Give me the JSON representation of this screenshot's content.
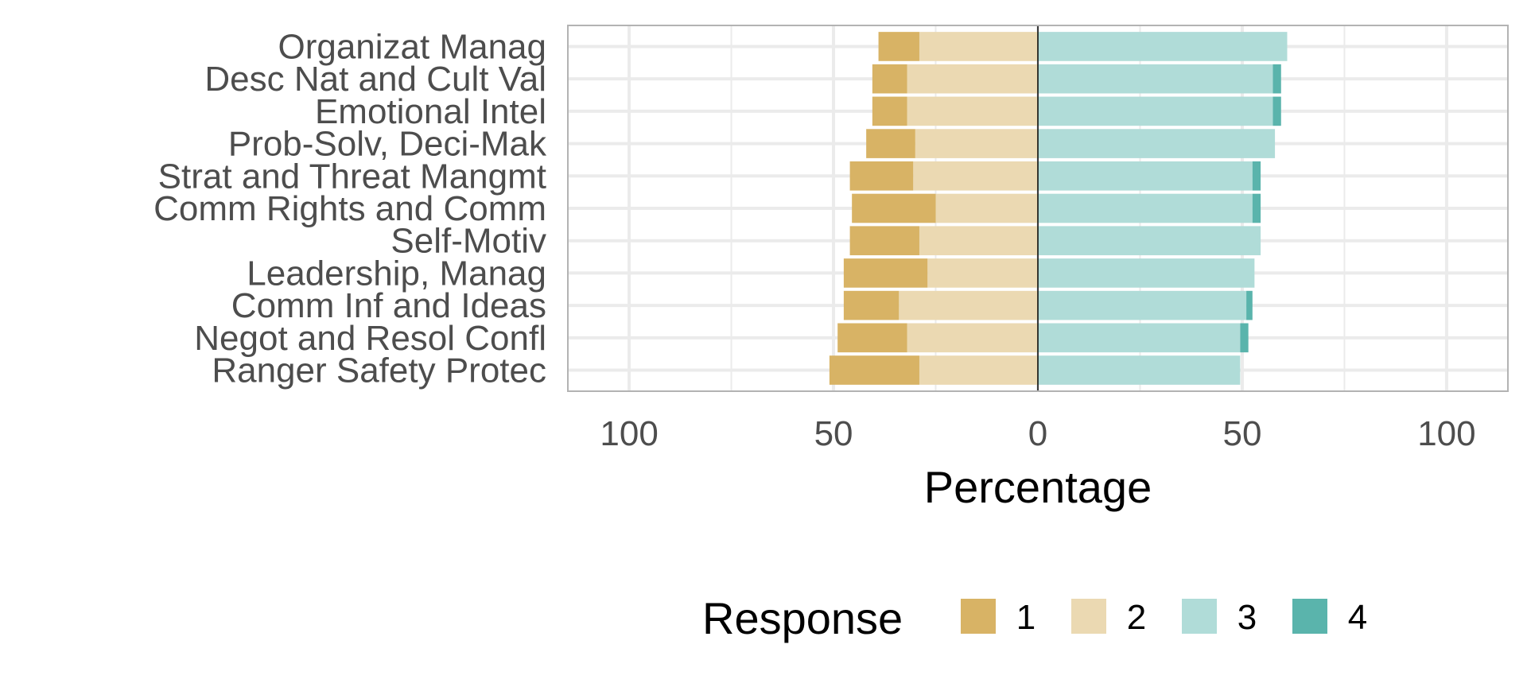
{
  "chart_data": {
    "type": "bar",
    "orientation": "horizontal-diverging",
    "xlabel": "Percentage",
    "xlim": [
      -115,
      115
    ],
    "xticks": [
      -100,
      -50,
      0,
      50,
      100
    ],
    "xtick_labels": [
      "100",
      "50",
      "0",
      "50",
      "100"
    ],
    "grid": true,
    "legend": {
      "title": "Response",
      "placement": "bottom",
      "labels": [
        "1",
        "2",
        "3",
        "4"
      ]
    },
    "colors": {
      "1": "#d8b365",
      "2": "#ebd9b2",
      "3": "#b0dcd8",
      "4": "#5ab4ac"
    },
    "categories": [
      "Organizat Manag",
      "Desc Nat and Cult Val",
      "Emotional Intel",
      "Prob-Solv, Deci-Mak",
      "Strat and Threat Mangmt",
      "Comm Rights and Comm",
      "Self-Motiv",
      "Leadership, Manag",
      "Comm Inf and Ideas",
      "Negot and Resol Confl",
      "Ranger Safety Protec"
    ],
    "series": [
      {
        "name": "1",
        "side": "negative",
        "values": [
          10,
          8.5,
          8.5,
          12,
          15.5,
          20.5,
          17,
          20.5,
          13.5,
          17,
          22
        ]
      },
      {
        "name": "2",
        "side": "negative",
        "values": [
          29,
          32,
          32,
          30,
          30.5,
          25,
          29,
          27,
          34,
          32,
          29
        ]
      },
      {
        "name": "3",
        "side": "positive",
        "values": [
          61,
          57.5,
          57.5,
          58,
          52.5,
          52.5,
          54.5,
          53,
          51,
          49.5,
          49.5
        ]
      },
      {
        "name": "4",
        "side": "positive",
        "values": [
          0,
          2,
          2,
          0,
          2,
          2,
          0,
          0,
          1.5,
          2,
          0
        ]
      }
    ]
  }
}
